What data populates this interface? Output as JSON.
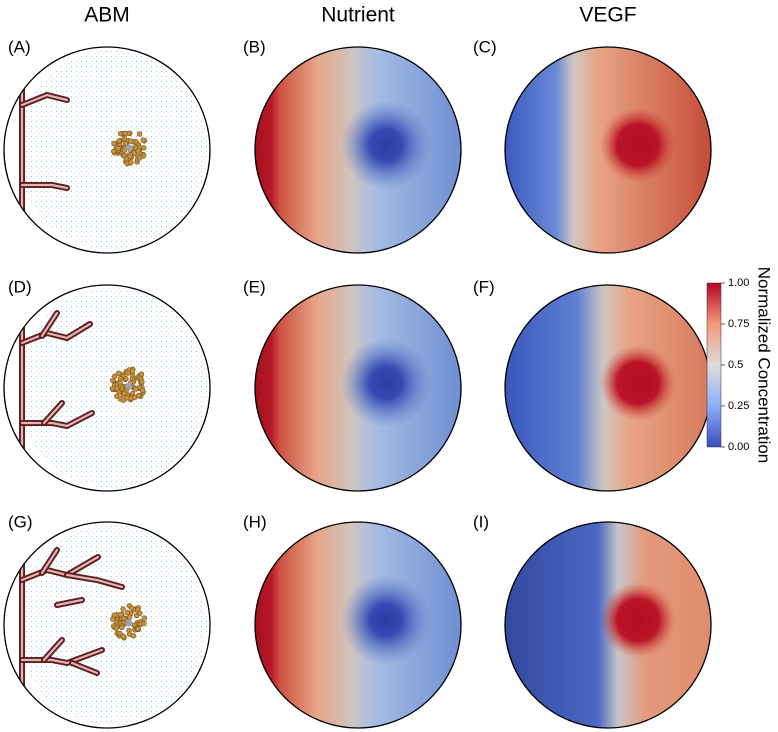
{
  "column_headers": [
    "ABM",
    "Nutrient",
    "VEGF"
  ],
  "panel_labels": [
    "(A)",
    "(B)",
    "(C)",
    "(D)",
    "(E)",
    "(F)",
    "(G)",
    "(H)",
    "(I)"
  ],
  "colorbar": {
    "title": "Normalized Concentration",
    "range": [
      0,
      1
    ],
    "ticks": [
      {
        "value": 0,
        "label": "0.00"
      },
      0.25,
      0.5,
      0.75,
      {
        "value": 1,
        "label": "1.00"
      }
    ]
  }
}
